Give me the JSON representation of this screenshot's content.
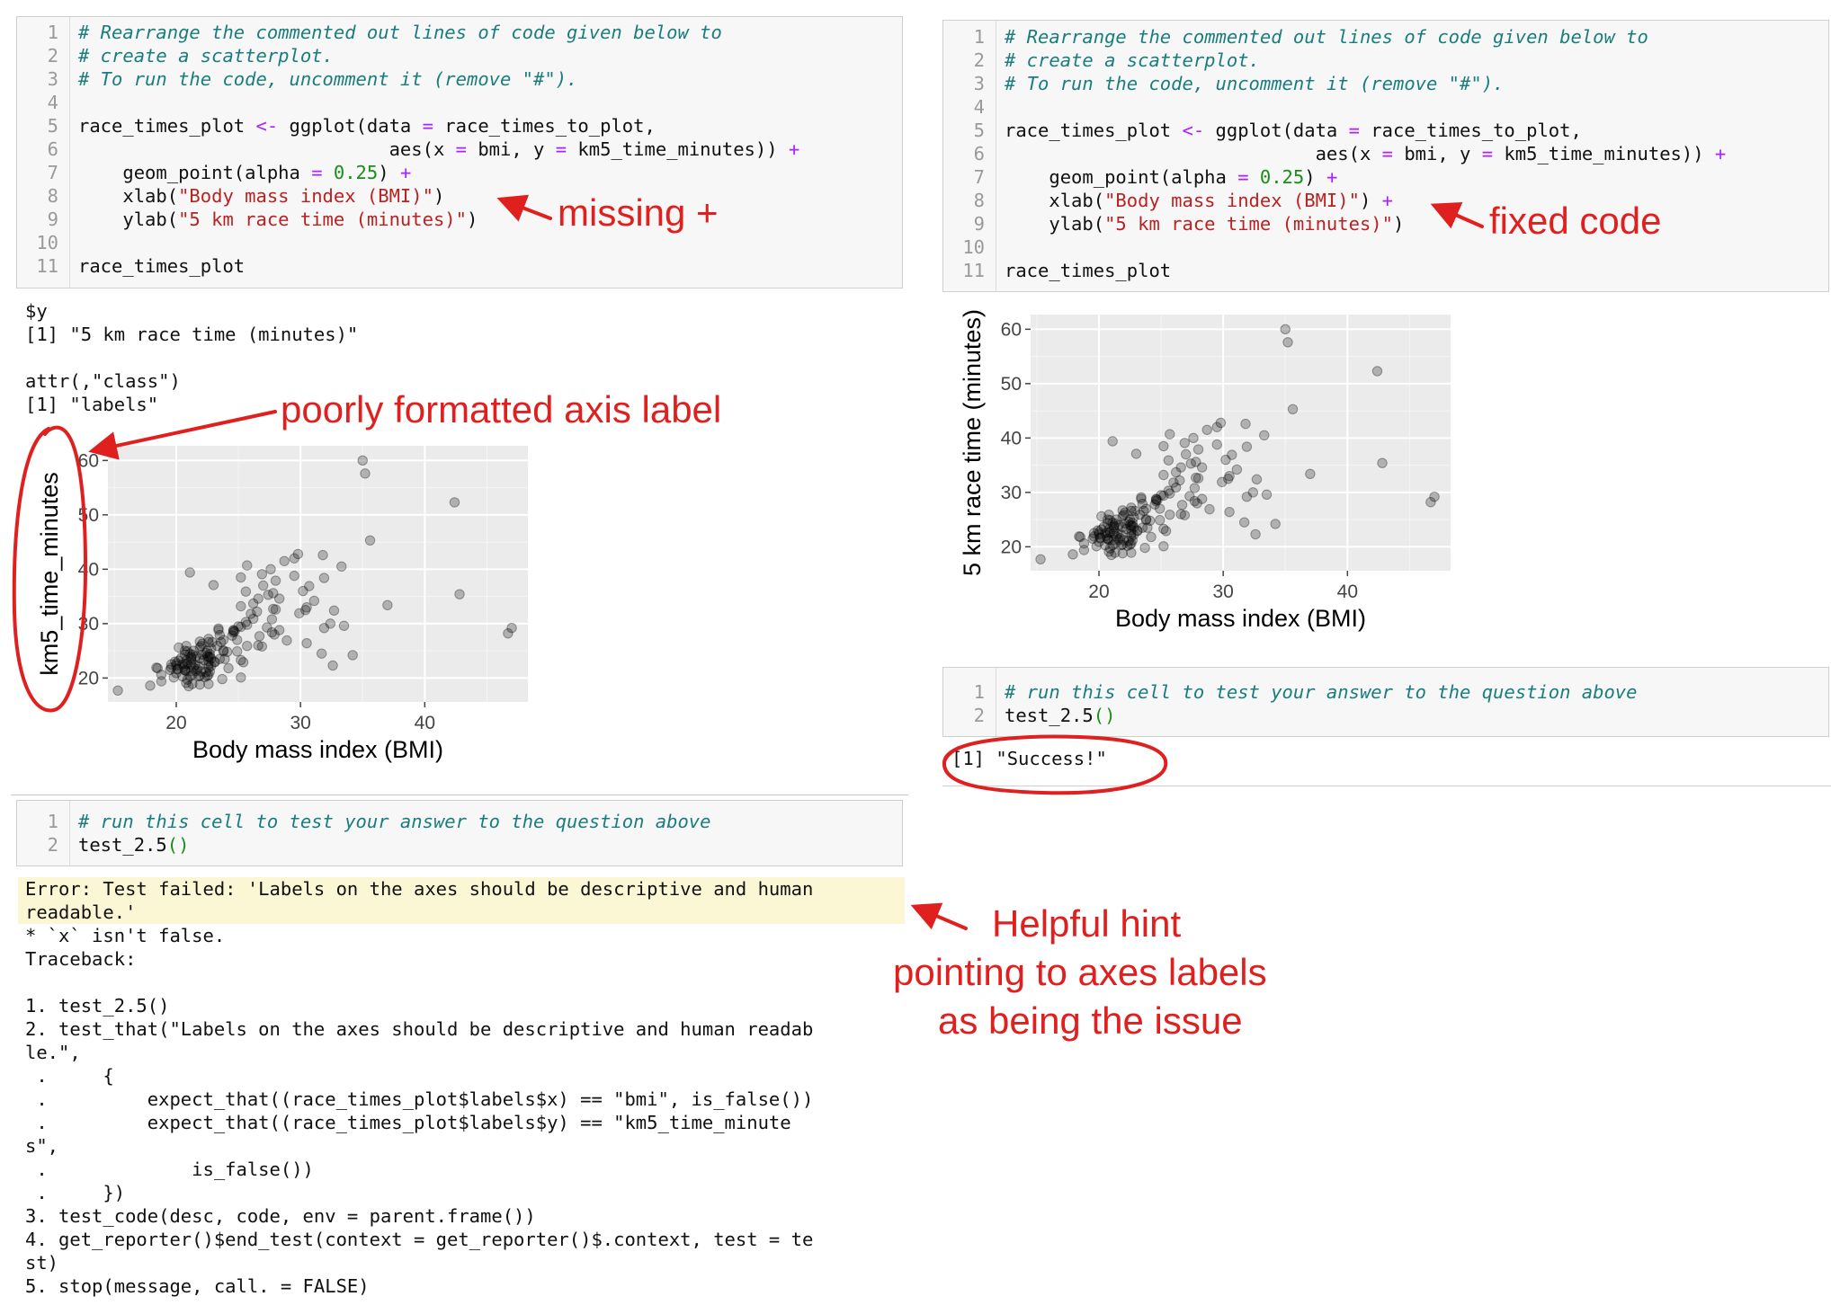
{
  "left_code_cell": {
    "lines": [
      {
        "n": "1",
        "parts": [
          {
            "t": "# Rearrange the commented out lines of code given below to",
            "c": "cm"
          }
        ]
      },
      {
        "n": "2",
        "parts": [
          {
            "t": "# create a scatterplot.",
            "c": "cm"
          }
        ]
      },
      {
        "n": "3",
        "parts": [
          {
            "t": "# To run the code, uncomment it (remove \"#\").",
            "c": "cm"
          }
        ]
      },
      {
        "n": "4",
        "parts": []
      },
      {
        "n": "5",
        "parts": [
          {
            "t": "race_times_plot ",
            "c": ""
          },
          {
            "t": "<-",
            "c": "kw"
          },
          {
            "t": " ggplot(data ",
            "c": ""
          },
          {
            "t": "=",
            "c": "kw"
          },
          {
            "t": " race_times_to_plot,",
            "c": ""
          }
        ]
      },
      {
        "n": "6",
        "parts": [
          {
            "t": "                            aes(x ",
            "c": ""
          },
          {
            "t": "=",
            "c": "kw"
          },
          {
            "t": " bmi, y ",
            "c": ""
          },
          {
            "t": "=",
            "c": "kw"
          },
          {
            "t": " km5_time_minutes)) ",
            "c": ""
          },
          {
            "t": "+",
            "c": "kw"
          }
        ]
      },
      {
        "n": "7",
        "parts": [
          {
            "t": "    geom_point(alpha ",
            "c": ""
          },
          {
            "t": "=",
            "c": "kw"
          },
          {
            "t": " ",
            "c": ""
          },
          {
            "t": "0.25",
            "c": "num"
          },
          {
            "t": ") ",
            "c": ""
          },
          {
            "t": "+",
            "c": "kw"
          }
        ]
      },
      {
        "n": "8",
        "parts": [
          {
            "t": "    xlab(",
            "c": ""
          },
          {
            "t": "\"Body mass index (BMI)\"",
            "c": "str"
          },
          {
            "t": ")",
            "c": ""
          }
        ]
      },
      {
        "n": "9",
        "parts": [
          {
            "t": "    ylab(",
            "c": ""
          },
          {
            "t": "\"5 km race time (minutes)\"",
            "c": "str"
          },
          {
            "t": ")",
            "c": ""
          }
        ]
      },
      {
        "n": "10",
        "parts": []
      },
      {
        "n": "11",
        "parts": [
          {
            "t": "race_times_plot",
            "c": ""
          }
        ]
      }
    ]
  },
  "right_code_cell": {
    "lines": [
      {
        "n": "1",
        "parts": [
          {
            "t": "# Rearrange the commented out lines of code given below to",
            "c": "cm"
          }
        ]
      },
      {
        "n": "2",
        "parts": [
          {
            "t": "# create a scatterplot.",
            "c": "cm"
          }
        ]
      },
      {
        "n": "3",
        "parts": [
          {
            "t": "# To run the code, uncomment it (remove \"#\").",
            "c": "cm"
          }
        ]
      },
      {
        "n": "4",
        "parts": []
      },
      {
        "n": "5",
        "parts": [
          {
            "t": "race_times_plot ",
            "c": ""
          },
          {
            "t": "<-",
            "c": "kw"
          },
          {
            "t": " ggplot(data ",
            "c": ""
          },
          {
            "t": "=",
            "c": "kw"
          },
          {
            "t": " race_times_to_plot,",
            "c": ""
          }
        ]
      },
      {
        "n": "6",
        "parts": [
          {
            "t": "                            aes(x ",
            "c": ""
          },
          {
            "t": "=",
            "c": "kw"
          },
          {
            "t": " bmi, y ",
            "c": ""
          },
          {
            "t": "=",
            "c": "kw"
          },
          {
            "t": " km5_time_minutes)) ",
            "c": ""
          },
          {
            "t": "+",
            "c": "kw"
          }
        ]
      },
      {
        "n": "7",
        "parts": [
          {
            "t": "    geom_point(alpha ",
            "c": ""
          },
          {
            "t": "=",
            "c": "kw"
          },
          {
            "t": " ",
            "c": ""
          },
          {
            "t": "0.25",
            "c": "num"
          },
          {
            "t": ") ",
            "c": ""
          },
          {
            "t": "+",
            "c": "kw"
          }
        ]
      },
      {
        "n": "8",
        "parts": [
          {
            "t": "    xlab(",
            "c": ""
          },
          {
            "t": "\"Body mass index (BMI)\"",
            "c": "str"
          },
          {
            "t": ") ",
            "c": ""
          },
          {
            "t": "+",
            "c": "kw"
          }
        ]
      },
      {
        "n": "9",
        "parts": [
          {
            "t": "    ylab(",
            "c": ""
          },
          {
            "t": "\"5 km race time (minutes)\"",
            "c": "str"
          },
          {
            "t": ")",
            "c": ""
          }
        ]
      },
      {
        "n": "10",
        "parts": []
      },
      {
        "n": "11",
        "parts": [
          {
            "t": "race_times_plot",
            "c": ""
          }
        ]
      }
    ]
  },
  "left_output": {
    "lines": [
      "$y",
      "[1] \"5 km race time (minutes)\"",
      "",
      "attr(,\"class\")",
      "[1] \"labels\""
    ]
  },
  "test_cell_left": {
    "lines": [
      {
        "n": "1",
        "parts": [
          {
            "t": "# run this cell to test your answer to the question above",
            "c": "cm"
          }
        ]
      },
      {
        "n": "2",
        "parts": [
          {
            "t": "test_2.5",
            "c": ""
          },
          {
            "t": "()",
            "c": "num"
          }
        ]
      }
    ]
  },
  "test_cell_right": {
    "lines": [
      {
        "n": "1",
        "parts": [
          {
            "t": "# run this cell to test your answer to the question above",
            "c": "cm"
          }
        ]
      },
      {
        "n": "2",
        "parts": [
          {
            "t": "test_2.5",
            "c": ""
          },
          {
            "t": "()",
            "c": "num"
          }
        ]
      }
    ]
  },
  "error_output": {
    "highlighted": [
      "Error: Test failed: 'Labels on the axes should be descriptive and human",
      "readable.'"
    ],
    "lines": [
      "* `x` isn't false.",
      "Traceback:",
      "",
      "1. test_2.5()",
      "2. test_that(\"Labels on the axes should be descriptive and human readab",
      "le.\",",
      " .     {",
      " .         expect_that((race_times_plot$labels$x) == \"bmi\", is_false())",
      " .         expect_that((race_times_plot$labels$y) == \"km5_time_minute",
      "s\",",
      " .             is_false())",
      " .     })",
      "3. test_code(desc, code, env = parent.frame())",
      "4. get_reporter()$end_test(context = get_reporter()$.context, test = te",
      "st)",
      "5. stop(message, call. = FALSE)"
    ]
  },
  "success_output": "[1] \"Success!\"",
  "annotations": {
    "missing_plus": "missing +",
    "fixed_code": "fixed code",
    "poor_label": "poorly formatted axis label",
    "hint": [
      "Helpful hint",
      "pointing to axes labels",
      "as being the issue"
    ],
    "color": "#e0201f"
  },
  "plot_left": {
    "x_label": "Body mass index (BMI)",
    "y_label": "km5_time_minutes",
    "x_ticks": [
      "20",
      "30",
      "40"
    ],
    "y_ticks": [
      "20",
      "30",
      "40",
      "50",
      "60"
    ]
  },
  "plot_right": {
    "x_label": "Body mass index (BMI)",
    "y_label": "5 km race time (minutes)",
    "x_ticks": [
      "20",
      "30",
      "40"
    ],
    "y_ticks": [
      "20",
      "30",
      "40",
      "50",
      "60"
    ]
  },
  "chart_data": {
    "type": "scatter",
    "xlabel": "Body mass index (BMI)",
    "ylabel": "5 km race time (minutes)",
    "xlim": [
      14.5,
      48.3
    ],
    "ylim": [
      15.6,
      62.7
    ],
    "point_alpha": 0.25,
    "point_color": "#000000",
    "panel_color": "#ebebeb",
    "x": [
      35.0,
      35.2,
      42.4,
      35.6,
      42.8,
      37.0,
      47.0,
      46.7,
      34.2,
      32.6,
      33.5,
      32.7,
      23.0,
      21.1,
      15.3,
      25.7,
      27.8,
      29.9,
      30.5,
      31.1,
      30.2,
      29.5,
      28.7,
      29.8,
      26.9,
      27.6,
      28.0,
      27.4,
      26.6,
      25.2,
      28.3,
      30.7,
      31.9,
      33.3,
      31.8,
      29.5,
      28.0,
      30.4,
      32.4,
      31.9,
      28.3,
      27.7,
      27.7,
      31.7,
      30.5,
      28.9,
      27.3,
      25.2,
      26.5,
      26.2,
      26.0,
      27.8,
      27.0,
      25.6,
      26.2,
      27.9,
      25.2,
      25.6,
      25.0,
      25.7,
      24.7,
      26.7,
      26.9,
      24.9,
      26.6,
      25.7,
      24.9,
      25.2,
      23.4,
      24.6,
      24.6,
      24.6,
      23.4,
      24.5,
      23.5,
      23.8,
      23.3,
      23.8,
      24.1,
      22.6,
      23.9,
      25.4,
      23.5,
      23.1,
      22.7,
      23.1,
      24.2,
      22.4,
      22.6,
      25.2,
      22.6,
      21.9,
      22.9,
      23.6,
      22.1,
      22.8,
      22.5,
      22.0,
      23.8,
      22.4,
      22.6,
      22.5,
      21.4,
      22.1,
      22.7,
      22.8,
      21.1,
      21.6,
      22.8,
      22.7,
      23.7,
      22.6,
      20.8,
      21.2,
      21.2,
      22.2,
      21.9,
      22.6,
      21.5,
      21.8,
      22.6,
      21.7,
      20.7,
      21.2,
      22.3,
      21.8,
      21.3,
      22.5,
      20.2,
      21.9,
      20.9,
      21.3,
      20.8,
      22.6,
      22.0,
      21.9,
      20.7,
      21.1,
      20.9,
      20.8,
      21.3,
      20.4,
      20.9,
      20.6,
      21.2,
      21.6,
      20.7,
      21.4,
      21.0,
      20.8,
      20.7,
      19.9,
      20.7,
      21.2,
      20.5,
      20.0,
      20.1,
      20.5,
      20.1,
      20.0,
      19.6,
      20.2,
      21.9,
      20.0,
      18.8,
      19.6,
      19.8,
      18.5,
      18.8,
      17.9,
      19.5,
      18.4
    ],
    "y": [
      60.0,
      57.6,
      52.3,
      45.3,
      35.4,
      33.4,
      29.2,
      28.2,
      24.2,
      22.3,
      29.6,
      32.4,
      37.1,
      39.4,
      17.7,
      40.7,
      35.6,
      31.9,
      33.0,
      34.2,
      36.0,
      38.8,
      41.5,
      42.8,
      39.1,
      40.0,
      37.9,
      35.3,
      34.6,
      38.5,
      34.6,
      36.9,
      38.4,
      40.5,
      42.6,
      42.0,
      32.6,
      32.5,
      30.0,
      29.2,
      28.8,
      30.8,
      28.4,
      24.5,
      26.4,
      26.9,
      29.3,
      33.2,
      32.2,
      30.9,
      31.8,
      32.7,
      37.0,
      35.9,
      33.7,
      28.0,
      29.4,
      30.3,
      29.5,
      29.8,
      28.6,
      27.7,
      25.8,
      27.0,
      26.0,
      25.9,
      24.9,
      23.3,
      29.1,
      28.7,
      28.8,
      28.4,
      28.8,
      27.8,
      27.9,
      27.0,
      25.9,
      24.9,
      24.8,
      26.6,
      23.5,
      22.9,
      23.5,
      23.0,
      23.9,
      22.9,
      21.8,
      21.1,
      20.6,
      20.1,
      27.2,
      26.7,
      26.6,
      26.6,
      26.3,
      25.4,
      25.0,
      25.9,
      25.1,
      24.6,
      23.8,
      24.0,
      25.0,
      24.3,
      24.4,
      23.6,
      24.4,
      24.0,
      22.2,
      21.2,
      19.8,
      18.9,
      21.3,
      23.9,
      23.6,
      23.3,
      23.6,
      23.1,
      22.4,
      22.2,
      21.9,
      21.6,
      21.4,
      21.3,
      20.2,
      20.3,
      20.6,
      20.4,
      25.6,
      25.6,
      24.9,
      24.3,
      23.2,
      22.4,
      21.2,
      20.4,
      21.5,
      20.3,
      19.7,
      19.1,
      18.9,
      23.7,
      22.6,
      22.1,
      22.5,
      21.3,
      22.6,
      21.9,
      18.5,
      25.9,
      24.3,
      23.0,
      25.0,
      23.2,
      22.5,
      22.7,
      21.6,
      20.3,
      21.7,
      22.3,
      21.9,
      23.2,
      18.8,
      20.9,
      20.6,
      22.5,
      20.1,
      21.8,
      19.4,
      18.6,
      21.5,
      21.9
    ]
  }
}
